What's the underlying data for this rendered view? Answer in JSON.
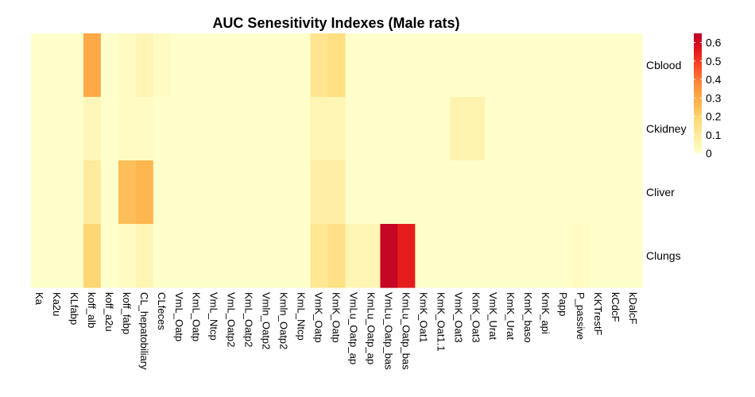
{
  "chart_data": {
    "type": "heatmap",
    "title": "AUC Senesitivity Indexes (Male rats)",
    "rows": [
      "Cblood",
      "Ckidney",
      "Cliver",
      "Clungs"
    ],
    "columns": [
      "Ka",
      "Ka2u",
      "KLfabp",
      "koff_alb",
      "koff_a2u",
      "koff_fabp",
      "CL_hepatobiliary",
      "CLfeces",
      "VmL_Oatp",
      "KmL_Oatp",
      "VmL_Ntcp",
      "VmL_Oatp2",
      "KmL_Oatp2",
      "Vmln_Oatp2",
      "Kmln_Oatp2",
      "KmL_Ntcp",
      "VmK_Oatp",
      "KmK_Oatp",
      "VmLu_Oatp_ap",
      "KmLu_Oatp_ap",
      "VmLu_Oatp_bas",
      "KmLu_Oatp_bas",
      "KmK_Oat1",
      "KmK_Oat1.1",
      "VmK_Oat3",
      "KmK_Oat3",
      "VmK_Urat",
      "KmK_Urat",
      "KmK_baso",
      "KmK_api",
      "Papp",
      "P_passive",
      "KKTrestF",
      "kCdcF",
      "kDalcF"
    ],
    "values": [
      [
        0,
        0,
        0,
        0.3,
        0,
        0.02,
        0.05,
        0.02,
        0,
        0,
        0,
        0,
        0,
        0,
        0,
        0,
        0.13,
        0.16,
        0,
        0,
        0,
        0,
        0,
        0,
        0,
        0,
        0,
        0,
        0,
        0,
        0,
        0,
        0,
        0,
        0
      ],
      [
        0,
        0,
        0,
        0.04,
        0,
        0.02,
        0.02,
        0,
        0,
        0,
        0,
        0,
        0,
        0,
        0,
        0,
        0.05,
        0.05,
        0,
        0,
        0,
        0,
        0,
        0,
        0.06,
        0.06,
        0,
        0,
        0,
        0,
        0,
        0,
        0,
        0,
        0
      ],
      [
        0,
        0,
        0,
        0.1,
        0,
        0.25,
        0.27,
        0,
        0,
        0,
        0,
        0,
        0,
        0,
        0,
        0,
        0.08,
        0.08,
        0,
        0,
        0,
        0,
        0,
        0,
        0,
        0,
        0,
        0,
        0,
        0,
        0,
        0,
        0,
        0,
        0
      ],
      [
        0,
        0,
        0,
        0.19,
        0,
        0.02,
        0.05,
        0,
        0,
        0,
        0,
        0,
        0,
        0,
        0,
        0,
        0.12,
        0.15,
        0.05,
        0.05,
        0.63,
        0.55,
        0,
        0,
        0,
        0,
        0,
        0,
        0,
        0,
        0,
        0.02,
        0,
        0,
        0
      ]
    ],
    "legend": {
      "ticks": [
        "0",
        "0.1",
        "0.2",
        "0.3",
        "0.4",
        "0.5",
        "0.6"
      ],
      "colors": [
        "#ffffcc",
        "#ffeda0",
        "#fed976",
        "#feb24c",
        "#fd8d3c",
        "#fc4e2a",
        "#e31a1c",
        "#bd0026"
      ],
      "placement": "right"
    }
  }
}
